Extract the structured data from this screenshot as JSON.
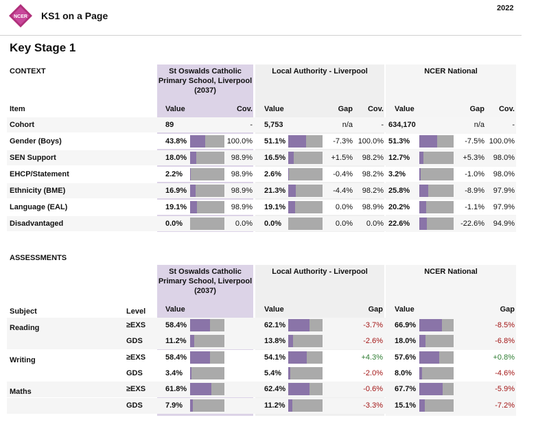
{
  "header": {
    "logo_text": "NCER",
    "app_title": "KS1 on a Page",
    "year": "2022"
  },
  "page_title": "Key Stage 1",
  "colors": {
    "school_panel": "#dcd3e7",
    "bar_fill": "#8a74a8",
    "bar_bg": "#aaaaaa",
    "negative": "#a31515",
    "positive": "#2e7d32"
  },
  "columns": {
    "school": "St Oswalds Catholic Primary School, Liverpool (2037)",
    "la": "Local Authority - Liverpool",
    "national": "NCER National"
  },
  "context": {
    "label": "CONTEXT",
    "headers": {
      "item": "Item",
      "value": "Value",
      "cov": "Cov.",
      "gap": "Gap"
    },
    "rows": [
      {
        "item": "Cohort",
        "school_value": "89",
        "school_cov": "-",
        "la_value": "5,753",
        "la_gap": "n/a",
        "la_cov": "-",
        "nat_value": "634,170",
        "nat_gap": "n/a",
        "nat_cov": "-",
        "school_pct": null,
        "la_pct": null,
        "nat_pct": null
      },
      {
        "item": "Gender (Boys)",
        "school_value": "43.8%",
        "school_cov": "100.0%",
        "la_value": "51.1%",
        "la_gap": "-7.3%",
        "la_cov": "100.0%",
        "nat_value": "51.3%",
        "nat_gap": "-7.5%",
        "nat_cov": "100.0%",
        "school_pct": 43.8,
        "la_pct": 51.1,
        "nat_pct": 51.3
      },
      {
        "item": "SEN Support",
        "school_value": "18.0%",
        "school_cov": "98.9%",
        "la_value": "16.5%",
        "la_gap": "+1.5%",
        "la_cov": "98.2%",
        "nat_value": "12.7%",
        "nat_gap": "+5.3%",
        "nat_cov": "98.0%",
        "school_pct": 18.0,
        "la_pct": 16.5,
        "nat_pct": 12.7
      },
      {
        "item": "EHCP/Statement",
        "school_value": "2.2%",
        "school_cov": "98.9%",
        "la_value": "2.6%",
        "la_gap": "-0.4%",
        "la_cov": "98.2%",
        "nat_value": "3.2%",
        "nat_gap": "-1.0%",
        "nat_cov": "98.0%",
        "school_pct": 2.2,
        "la_pct": 2.6,
        "nat_pct": 3.2
      },
      {
        "item": "Ethnicity (BME)",
        "school_value": "16.9%",
        "school_cov": "98.9%",
        "la_value": "21.3%",
        "la_gap": "-4.4%",
        "la_cov": "98.2%",
        "nat_value": "25.8%",
        "nat_gap": "-8.9%",
        "nat_cov": "97.9%",
        "school_pct": 16.9,
        "la_pct": 21.3,
        "nat_pct": 25.8
      },
      {
        "item": "Language (EAL)",
        "school_value": "19.1%",
        "school_cov": "98.9%",
        "la_value": "19.1%",
        "la_gap": "0.0%",
        "la_cov": "98.9%",
        "nat_value": "20.2%",
        "nat_gap": "-1.1%",
        "nat_cov": "97.9%",
        "school_pct": 19.1,
        "la_pct": 19.1,
        "nat_pct": 20.2
      },
      {
        "item": "Disadvantaged",
        "school_value": "0.0%",
        "school_cov": "0.0%",
        "la_value": "0.0%",
        "la_gap": "0.0%",
        "la_cov": "0.0%",
        "nat_value": "22.6%",
        "nat_gap": "-22.6%",
        "nat_cov": "94.9%",
        "school_pct": 0.0,
        "la_pct": 0.0,
        "nat_pct": 22.6
      }
    ]
  },
  "assessments": {
    "label": "ASSESSMENTS",
    "headers": {
      "subject": "Subject",
      "level": "Level",
      "value": "Value",
      "gap": "Gap"
    },
    "rows": [
      {
        "subject": "Reading",
        "level": "≥EXS",
        "school_value": "58.4%",
        "la_value": "62.1%",
        "la_gap": "-3.7%",
        "nat_value": "66.9%",
        "nat_gap": "-8.5%",
        "school_pct": 58.4,
        "la_pct": 62.1,
        "nat_pct": 66.9
      },
      {
        "subject": "",
        "level": "GDS",
        "school_value": "11.2%",
        "la_value": "13.8%",
        "la_gap": "-2.6%",
        "nat_value": "18.0%",
        "nat_gap": "-6.8%",
        "school_pct": 11.2,
        "la_pct": 13.8,
        "nat_pct": 18.0
      },
      {
        "subject": "Writing",
        "level": "≥EXS",
        "school_value": "58.4%",
        "la_value": "54.1%",
        "la_gap": "+4.3%",
        "nat_value": "57.6%",
        "nat_gap": "+0.8%",
        "school_pct": 58.4,
        "la_pct": 54.1,
        "nat_pct": 57.6
      },
      {
        "subject": "",
        "level": "GDS",
        "school_value": "3.4%",
        "la_value": "5.4%",
        "la_gap": "-2.0%",
        "nat_value": "8.0%",
        "nat_gap": "-4.6%",
        "school_pct": 3.4,
        "la_pct": 5.4,
        "nat_pct": 8.0
      },
      {
        "subject": "Maths",
        "level": "≥EXS",
        "school_value": "61.8%",
        "la_value": "62.4%",
        "la_gap": "-0.6%",
        "nat_value": "67.7%",
        "nat_gap": "-5.9%",
        "school_pct": 61.8,
        "la_pct": 62.4,
        "nat_pct": 67.7
      },
      {
        "subject": "",
        "level": "GDS",
        "school_value": "7.9%",
        "la_value": "11.2%",
        "la_gap": "-3.3%",
        "nat_value": "15.1%",
        "nat_gap": "-7.2%",
        "school_pct": 7.9,
        "la_pct": 11.2,
        "nat_pct": 15.1
      }
    ]
  }
}
